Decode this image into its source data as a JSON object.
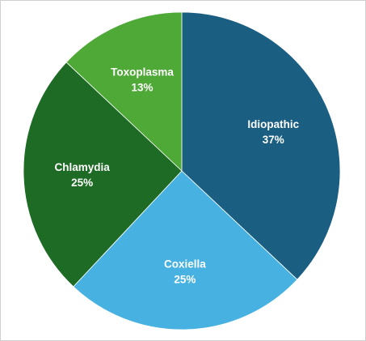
{
  "chart_data": {
    "type": "pie",
    "title": "",
    "slices": [
      {
        "label": "Idiopathic",
        "value": 37,
        "value_text": "37%",
        "color": "#1a5e82"
      },
      {
        "label": "Coxiella",
        "value": 25,
        "value_text": "25%",
        "color": "#47b2e2"
      },
      {
        "label": "Chlamydia",
        "value": 25,
        "value_text": "25%",
        "color": "#1d6b24"
      },
      {
        "label": "Toxoplasma",
        "value": 13,
        "value_text": "13%",
        "color": "#4ea937"
      }
    ],
    "start_angle_deg": 0,
    "direction": "clockwise",
    "legend": "none"
  }
}
